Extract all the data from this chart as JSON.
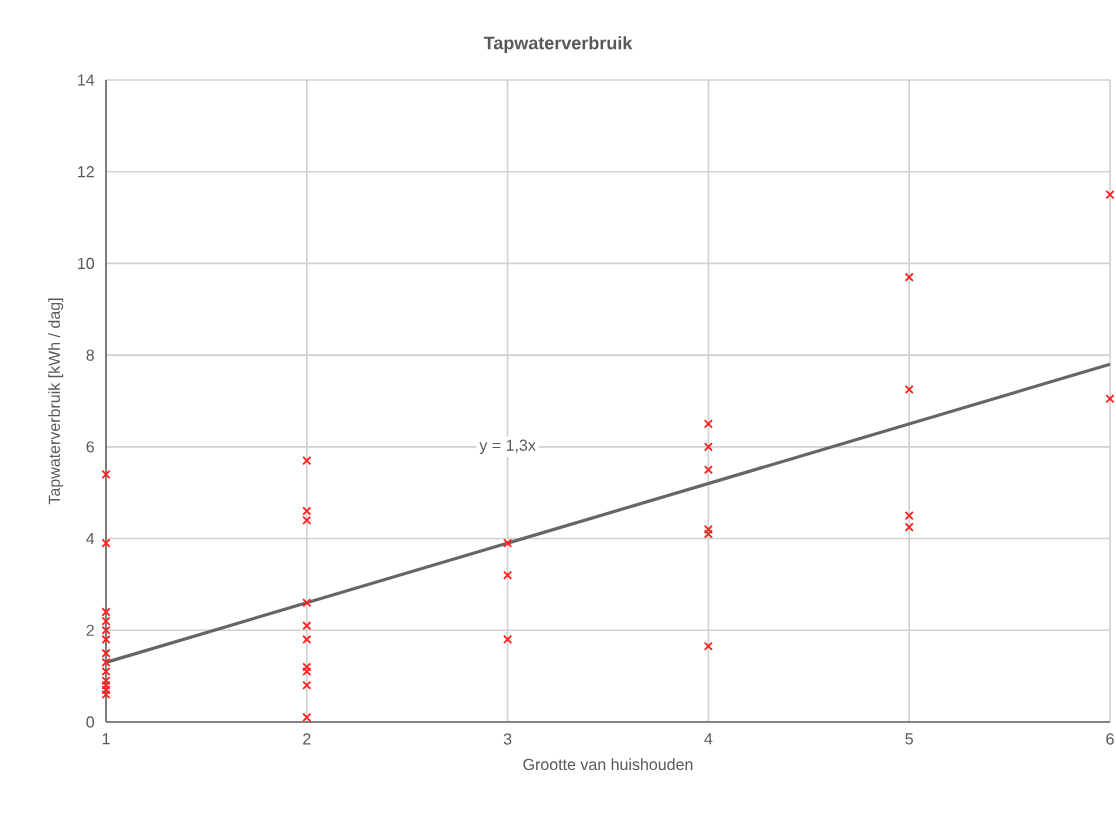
{
  "chart_data": {
    "type": "scatter",
    "title": "Tapwaterverbruik",
    "xlabel": "Grootte van huishouden",
    "ylabel": "Tapwaterverbruik [kWh / dag]",
    "xlim": [
      1,
      6
    ],
    "xticks": [
      1,
      2,
      3,
      4,
      5,
      6
    ],
    "ylim": [
      0,
      14
    ],
    "yticks": [
      0,
      2,
      4,
      6,
      8,
      10,
      12,
      14
    ],
    "grid": true,
    "marker": "cross",
    "annotations": [
      {
        "text": "y = 1,3x",
        "x": 3.0,
        "y": 6.0
      }
    ],
    "series": [
      {
        "color": "#ff2020",
        "x": [
          1,
          1,
          1,
          1,
          1,
          1,
          1,
          1,
          1,
          1,
          1,
          1,
          1,
          2,
          2,
          2,
          2,
          2,
          2,
          2,
          2,
          2,
          2,
          3,
          3,
          3,
          4,
          4,
          4,
          4,
          4,
          4,
          5,
          5,
          5,
          5,
          6,
          6
        ],
        "values": [
          5.4,
          3.9,
          2.4,
          2.2,
          2.0,
          1.8,
          1.5,
          1.3,
          1.1,
          0.9,
          0.8,
          0.7,
          0.6,
          5.7,
          4.6,
          4.4,
          2.6,
          2.1,
          1.8,
          1.2,
          1.1,
          0.8,
          0.1,
          3.9,
          3.2,
          1.8,
          6.5,
          6.0,
          5.5,
          4.2,
          4.1,
          1.65,
          9.7,
          7.25,
          4.5,
          4.25,
          11.5,
          7.05
        ]
      },
      {
        "type": "line",
        "color": "#666666",
        "x": [
          1,
          6
        ],
        "values": [
          1.3,
          7.8
        ],
        "marker": "none"
      }
    ]
  }
}
